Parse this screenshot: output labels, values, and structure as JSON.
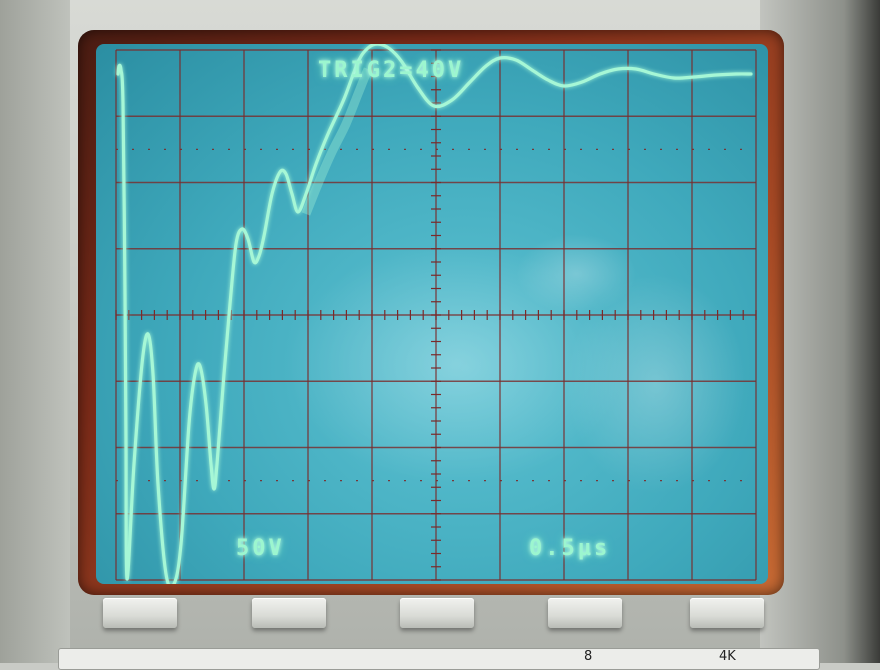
{
  "screen": {
    "trigger_readout": "TRIG2=40V",
    "vertical_scale": "50V",
    "timebase": "0.5µs",
    "trace_color": "#a6f7d6",
    "grid_color": "#7a2a2a",
    "screen_color": "#45adc0"
  },
  "grid": {
    "divisions_x": 10,
    "divisions_y": 8
  },
  "panel": {
    "softkey_count": 5,
    "strip_text_a": "8",
    "strip_text_b": "4K"
  }
}
